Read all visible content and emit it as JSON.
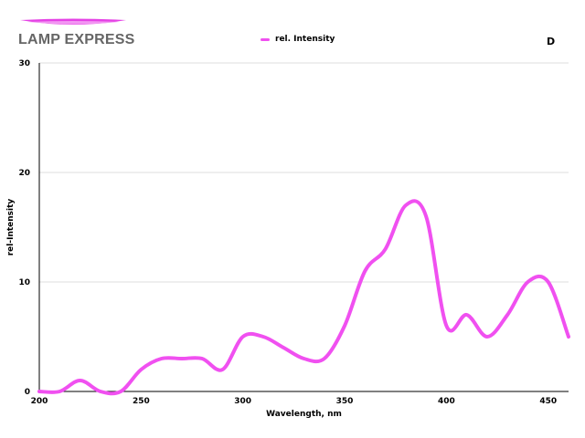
{
  "header": {
    "brand": "LAMP EXPRESS",
    "corner_letter": "D"
  },
  "colors": {
    "series": "#f050f0",
    "brand_text": "#666666",
    "logo_accent": "#e020e0"
  },
  "icons": {
    "logo": "swoosh-logo-icon"
  },
  "chart_data": {
    "type": "line",
    "title": "",
    "xlabel": "Wavelength, nm",
    "ylabel": "rel-Intensity",
    "xlim": [
      200,
      460
    ],
    "ylim": [
      0,
      30
    ],
    "x_ticks": [
      200,
      250,
      300,
      350,
      400,
      450
    ],
    "y_ticks": [
      0,
      10,
      20,
      30
    ],
    "grid": "horizontal",
    "legend_position": "top-center",
    "series": [
      {
        "name": "rel. Intensity",
        "x": [
          200,
          210,
          220,
          230,
          240,
          250,
          260,
          270,
          280,
          290,
          300,
          310,
          320,
          330,
          340,
          350,
          360,
          370,
          380,
          390,
          400,
          410,
          420,
          430,
          440,
          450,
          460
        ],
        "y": [
          0,
          0,
          1,
          0,
          0,
          2,
          3,
          3,
          3,
          2,
          5,
          5,
          4,
          3,
          3,
          6,
          11,
          13,
          17,
          16,
          6,
          7,
          5,
          7,
          10,
          10,
          5
        ]
      }
    ]
  }
}
